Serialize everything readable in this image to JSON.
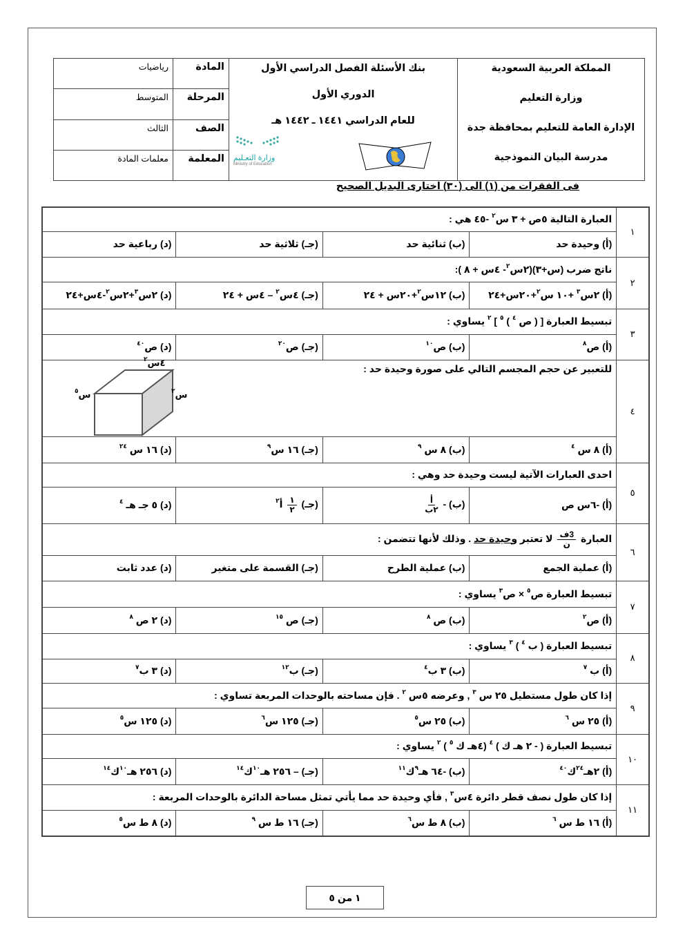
{
  "header": {
    "school": [
      "المملكة العربية السعودية",
      "وزارة التعليم",
      "الإدارة العامة للتعليم بمحافظة جدة",
      "مدرسة البيان النموذجية"
    ],
    "bank": [
      "بنك الأسئلة الفصل الدراسي الأول",
      "الدوري الأول",
      "للعام الدراسي  ١٤٤١ ـ ١٤٤٢ هـ"
    ],
    "fields": [
      {
        "label": "المادة",
        "value": "رياضيات"
      },
      {
        "label": "المرحلة",
        "value": "المتوسط"
      },
      {
        "label": "الصف",
        "value": "الثالث"
      },
      {
        "label": "المعلمة",
        "value": "معلمات المادة"
      }
    ],
    "moe_logo": {
      "ar": "وزارة التعـليم",
      "en": "Ministry of Education"
    }
  },
  "instruction": "فى الفقرات من (١) الى (٣٠) اختارى البديل الصحيح",
  "questions": [
    {
      "num": "١",
      "text": [
        "العبارة التالية  ٥ص + ٣ س",
        {
          "sup": "٢"
        },
        " -٤٥ هي :"
      ],
      "options": [
        [
          "(أ) وحيدة حد"
        ],
        [
          "(ب) ثنائية حد"
        ],
        [
          "(جـ) ثلاثية حد"
        ],
        [
          "(د) رباعية حد"
        ]
      ]
    },
    {
      "num": "٢",
      "text": [
        "ناتج ضرب (س+٣)(٢س",
        {
          "sup": "٢"
        },
        "- ٤س + ٨ ):"
      ],
      "options": [
        [
          "(أ) ٢س",
          {
            "sup": "٣"
          },
          " +١٠ س",
          {
            "sup": "٢"
          },
          "+٢٠س+٢٤"
        ],
        [
          "(ب) ١٢س",
          {
            "sup": "٢"
          },
          "+٢٠س + ٢٤"
        ],
        [
          "(جـ) ٤س",
          {
            "sup": "٢"
          },
          " – ٤س + ٢٤"
        ],
        [
          "(د)  ٢س",
          {
            "sup": "٣"
          },
          "+٢س",
          {
            "sup": "٢"
          },
          "-٤س+٢٤"
        ]
      ]
    },
    {
      "num": "٣",
      "text": [
        "تبسيط العبارة  [ ( ص ",
        {
          "sup": "٤"
        },
        " ) ",
        {
          "sup": "٥"
        },
        " ] ",
        {
          "sup": "٢"
        },
        " يساوي :"
      ],
      "options": [
        [
          "(أ)  ص",
          {
            "sup": "٨"
          }
        ],
        [
          "(ب) ص",
          {
            "sup": "١٠"
          }
        ],
        [
          "(جـ) ص",
          {
            "sup": "٢٠"
          }
        ],
        [
          "(د) ص",
          {
            "sup": "٤٠"
          }
        ]
      ]
    },
    {
      "num": "٤",
      "text": [
        "للتعبير عن حجم المجسم التالي على صورة وحيدة حد :"
      ],
      "figure": {
        "top": [
          "٤س",
          {
            "sup": "٢"
          }
        ],
        "right": [
          "س",
          {
            "sup": "٢"
          }
        ],
        "left": [
          "س",
          {
            "sup": "٥"
          }
        ]
      },
      "options": [
        [
          "(أ)  ٨ س ",
          {
            "sup": "٤"
          }
        ],
        [
          "(ب) ٨ س ",
          {
            "sup": "٩"
          }
        ],
        [
          "(جـ) ١٦ س",
          {
            "sup": "٩"
          }
        ],
        [
          "(د) ١٦ س ",
          {
            "sup": "٢٤"
          }
        ]
      ]
    },
    {
      "num": "٥",
      "text": [
        "احدى العبارات الآتية ليست وحيدة حد وهي :"
      ],
      "options": [
        [
          "(أ)  -٦س ص"
        ],
        [
          "(ب) - ",
          {
            "frac": {
              "n": "أ",
              "d": "٢ب"
            }
          }
        ],
        [
          "(جـ) ",
          {
            "frac": {
              "n": "١",
              "d": "٢"
            }
          },
          " أ",
          {
            "sup": "٢"
          }
        ],
        [
          "(د) ٥ جـ هـ ",
          {
            "sup": "٤"
          }
        ]
      ]
    },
    {
      "num": "٦",
      "text": [
        "العبارة ",
        {
          "frac": {
            "n": "3ف",
            "d": "ن"
          }
        },
        " لا تعتبر ",
        {
          "u": "وحيدة حد"
        },
        " . وذلك لأنها تتضمن :"
      ],
      "options": [
        [
          "(أ) عملية الجمع"
        ],
        [
          "(ب) عملية الطرح"
        ],
        [
          "(جـ) القسمة على متغير"
        ],
        [
          "(د) عدد ثابت"
        ]
      ]
    },
    {
      "num": "٧",
      "text": [
        "تبسيط العبارة ص",
        {
          "sup": "٥"
        },
        " × ص",
        {
          "sup": "٣"
        },
        "  يساوي :"
      ],
      "options": [
        [
          "(أ) ص",
          {
            "sup": "٢"
          }
        ],
        [
          "(ب) ص ",
          {
            "sup": "٨"
          }
        ],
        [
          "(جـ) ص ",
          {
            "sup": "١٥"
          }
        ],
        [
          "(د) ٢ ص ",
          {
            "sup": "٨"
          }
        ]
      ]
    },
    {
      "num": "٨",
      "text": [
        "تبسيط العبارة  ( ب ",
        {
          "sup": "٤"
        },
        " ) ",
        {
          "sup": "٣"
        },
        " يساوي :"
      ],
      "options": [
        [
          "(أ) ب ",
          {
            "sup": "٧"
          }
        ],
        [
          "(ب) ٣ ب",
          {
            "sup": "٤"
          }
        ],
        [
          "(جـ) ب",
          {
            "sup": "١٢"
          }
        ],
        [
          "(د) ٣ ب",
          {
            "sup": "٧"
          }
        ]
      ]
    },
    {
      "num": "٩",
      "text": [
        "إذا كان طول مستطيل ٢٥ س ",
        {
          "sup": "٣"
        },
        " , وعرضه ٥س ",
        {
          "sup": "٢"
        },
        "  . فإن مساحته بالوحدات المربعة تساوي :"
      ],
      "options": [
        [
          "(أ) ٢٥ س ",
          {
            "sup": "٦"
          }
        ],
        [
          "(ب) ٢٥ س",
          {
            "sup": "٥"
          }
        ],
        [
          "(جـ) ١٢٥ س",
          {
            "sup": "٦"
          }
        ],
        [
          "(د) ١٢٥ س",
          {
            "sup": "٥"
          }
        ]
      ]
    },
    {
      "num": "١٠",
      "text": [
        "تبسيط العبارة  ( - ٢ هـ ك ) ",
        {
          "sup": "٤"
        },
        " (٤هـ ك ",
        {
          "sup": "٥"
        },
        " ) ",
        {
          "sup": "٢"
        },
        " يساوي :"
      ],
      "options": [
        [
          "(أ) ٢هـ",
          {
            "sup": "٢٤"
          },
          "ك",
          {
            "sup": "٤٠"
          }
        ],
        [
          "(ب) -٦٤ هـ",
          {
            "sup": "٩"
          },
          "ك",
          {
            "sup": "١١"
          }
        ],
        [
          "(جـ) – ٢٥٦ هـ",
          {
            "sup": "١٠"
          },
          "ك",
          {
            "sup": "١٤"
          }
        ],
        [
          "(د) ٢٥٦ هـ",
          {
            "sup": "١٠"
          },
          "ك",
          {
            "sup": "١٤"
          }
        ]
      ]
    },
    {
      "num": "١١",
      "text": [
        "إذا كان طول نصف قطر دائرة ٤س",
        {
          "sup": "٣"
        },
        " , فأي وحيدة حد مما يأتي تمثل مساحة الدائرة بالوحدات المربعة :"
      ],
      "options": [
        [
          "(أ) ١٦ ط س ",
          {
            "sup": "٦"
          }
        ],
        [
          "(ب) ٨ ط س",
          {
            "sup": "٦"
          }
        ],
        [
          "(جـ) ١٦ ط س ",
          {
            "sup": "٩"
          }
        ],
        [
          "(د) ٨ ط س",
          {
            "sup": "٥"
          }
        ]
      ]
    }
  ],
  "footer": {
    "page": "١ من ٥"
  }
}
